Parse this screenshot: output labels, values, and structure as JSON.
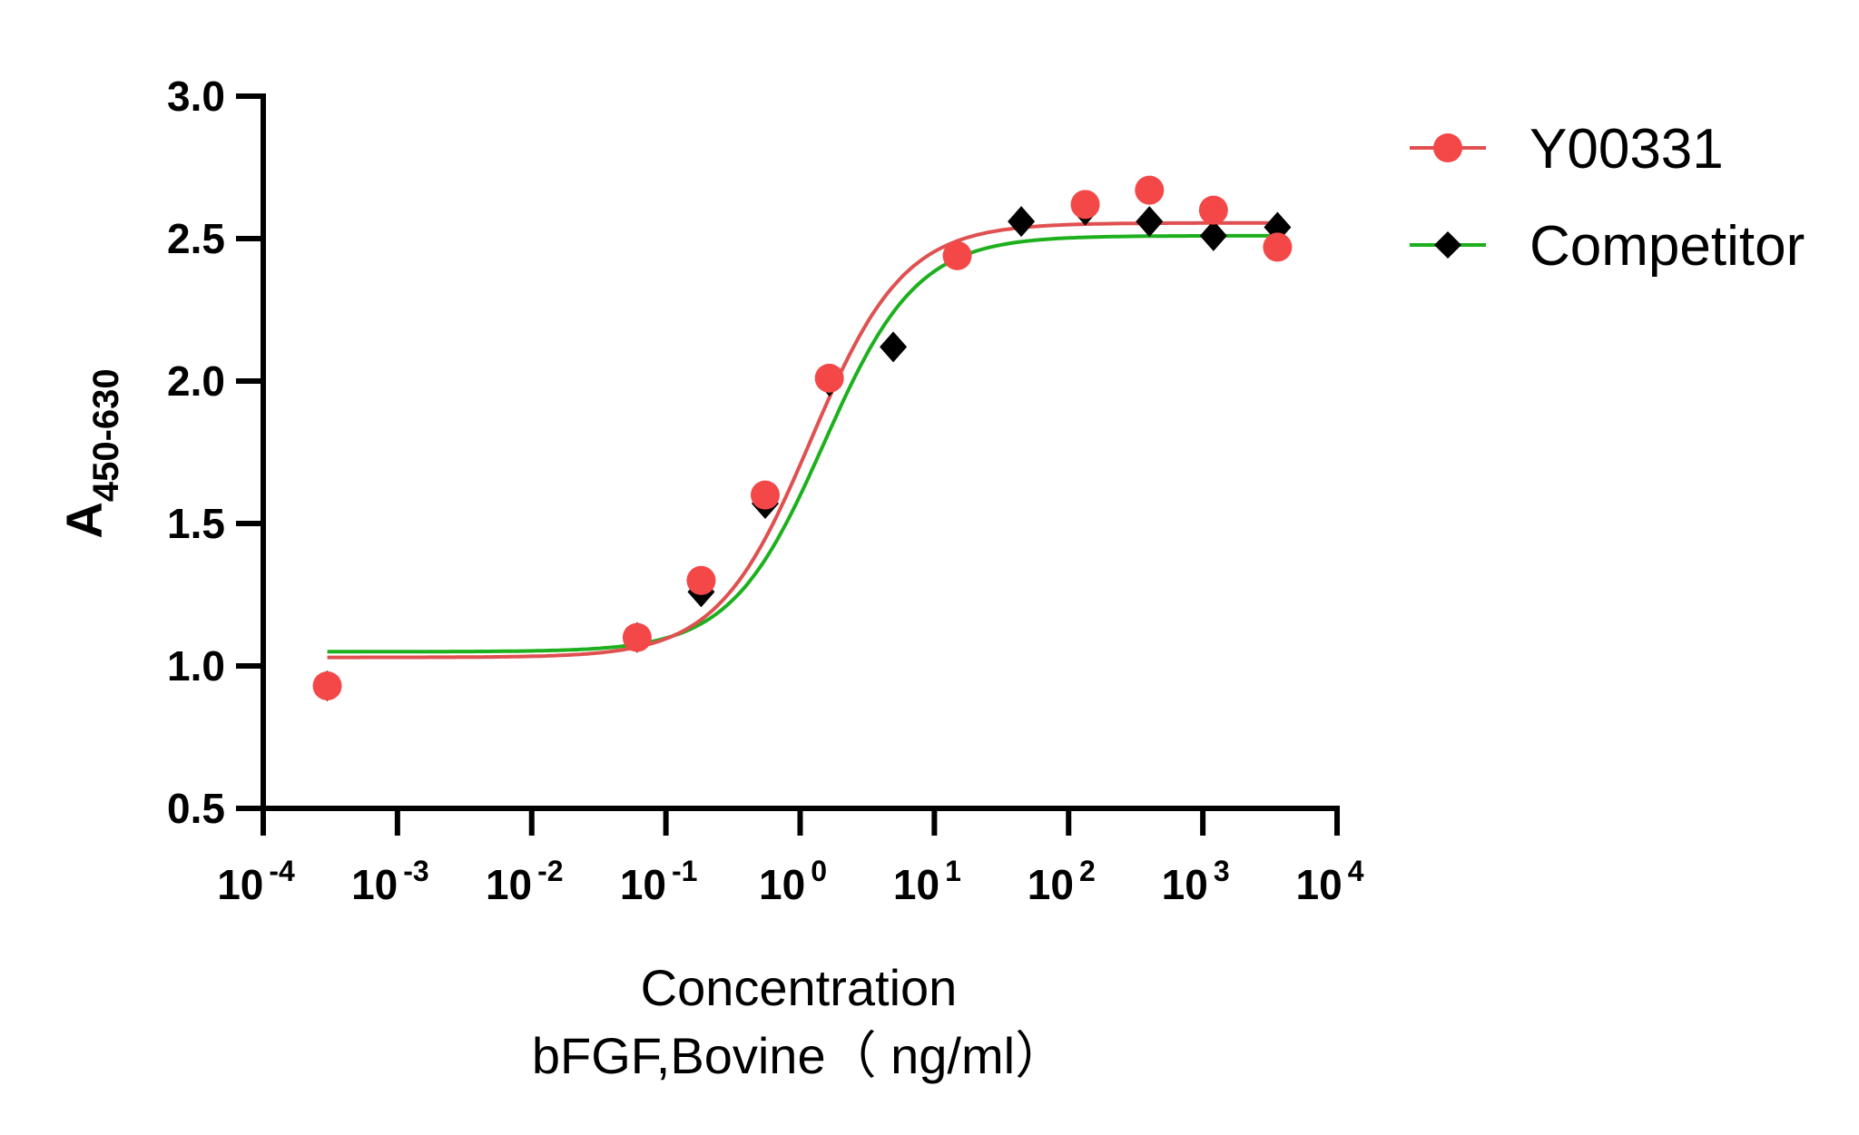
{
  "chart_data": {
    "type": "scatter",
    "xlabel_lines": [
      "Concentration",
      "bFGF,Bovine（ ng/ml）"
    ],
    "ylabel": "A",
    "ylabel_subscript": "450-630",
    "x_scale": "log",
    "xlim": [
      0.0001,
      10000
    ],
    "ylim": [
      0.5,
      3.0
    ],
    "x_ticks": [
      -4,
      -3,
      -2,
      -1,
      0,
      1,
      2,
      3,
      4
    ],
    "x_tick_base": "10",
    "y_ticks": [
      "0.5",
      "1.0",
      "1.5",
      "2.0",
      "2.5",
      "3.0"
    ],
    "grid": false,
    "legend_position": "top-right",
    "series": [
      {
        "name": "Y00331",
        "marker": "circle",
        "marker_color": "#f44848",
        "line_color": "#e05050",
        "x": [
          0.0003,
          0.061,
          0.183,
          0.549,
          1.65,
          4.94,
          14.8,
          44.4,
          133,
          400,
          1200,
          3600
        ],
        "y": [
          0.93,
          1.1,
          1.3,
          1.6,
          2.01,
          null,
          2.44,
          null,
          2.62,
          2.67,
          2.6,
          2.47
        ],
        "fit": {
          "model": "4PL",
          "bottom": 1.03,
          "top": 2.555,
          "ec50": 1.2,
          "hill": 1.25
        }
      },
      {
        "name": "Competitor",
        "marker": "diamond",
        "marker_color": "#000000",
        "line_color": "#1db01d",
        "x": [
          0.0003,
          0.061,
          0.183,
          0.549,
          1.65,
          4.94,
          14.8,
          44.4,
          133,
          400,
          1200,
          3600
        ],
        "y": [
          0.93,
          1.1,
          1.26,
          1.57,
          2.0,
          2.12,
          null,
          2.56,
          2.6,
          2.56,
          2.51,
          2.54
        ],
        "fit": {
          "model": "4PL",
          "bottom": 1.05,
          "top": 2.51,
          "ec50": 1.5,
          "hill": 1.25
        }
      }
    ]
  }
}
